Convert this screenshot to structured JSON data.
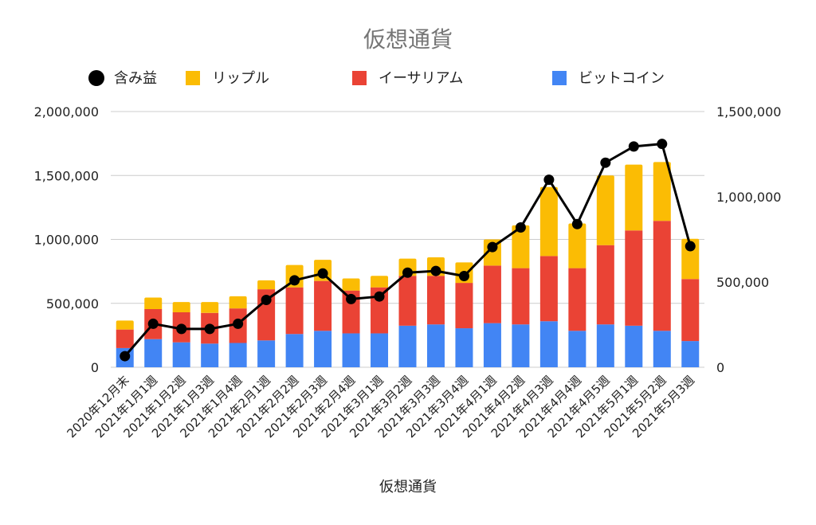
{
  "chart_data": {
    "type": "bar",
    "title": "仮想通貨",
    "xlabel": "仮想通貨",
    "ylabel": "",
    "legend_position": "top",
    "grid": true,
    "stacked": true,
    "categories": [
      "2020年12月末",
      "2021年1月1週",
      "2021年1月2週",
      "2021年1月3週",
      "2021年1月4週",
      "2021年2月1週",
      "2021年2月2週",
      "2021年2月3週",
      "2021年2月4週",
      "2021年3月1週",
      "2021年3月2週",
      "2021年3月3週",
      "2021年3月4週",
      "2021年4月1週",
      "2021年4月2週",
      "2021年4月3週",
      "2021年4月4週",
      "2021年4月5週",
      "2021年5月1週",
      "2021年5月2週",
      "2021年5月3週"
    ],
    "ylim": [
      0,
      2000000
    ],
    "yticks": [
      "0",
      "500,000",
      "1,000,000",
      "1,500,000",
      "2,000,000"
    ],
    "y2lim": [
      0,
      1500000
    ],
    "y2ticks": [
      "0",
      "500,000",
      "1,000,000",
      "1,500,000"
    ],
    "series": [
      {
        "name": "ビットコイン",
        "type": "bar",
        "axis": "left",
        "color": "#4285f4",
        "values": [
          150000,
          220000,
          195000,
          185000,
          190000,
          210000,
          260000,
          285000,
          265000,
          265000,
          325000,
          335000,
          305000,
          345000,
          335000,
          360000,
          285000,
          335000,
          325000,
          285000,
          205000
        ]
      },
      {
        "name": "イーサリアム",
        "type": "bar",
        "axis": "left",
        "color": "#ea4335",
        "values": [
          145000,
          235000,
          235000,
          240000,
          270000,
          400000,
          365000,
          390000,
          335000,
          360000,
          390000,
          380000,
          355000,
          450000,
          440000,
          510000,
          490000,
          620000,
          745000,
          860000,
          485000
        ]
      },
      {
        "name": "リップル",
        "type": "bar",
        "axis": "left",
        "color": "#fbbc04",
        "values": [
          70000,
          90000,
          80000,
          85000,
          95000,
          70000,
          175000,
          165000,
          95000,
          90000,
          135000,
          145000,
          160000,
          205000,
          335000,
          540000,
          350000,
          545000,
          515000,
          460000,
          315000
        ]
      },
      {
        "name": "含み益",
        "type": "line",
        "axis": "right",
        "color": "#000000",
        "values": [
          65000,
          255000,
          225000,
          225000,
          255000,
          395000,
          510000,
          550000,
          400000,
          415000,
          555000,
          565000,
          535000,
          705000,
          820000,
          1100000,
          840000,
          1200000,
          1295000,
          1310000,
          710000
        ]
      }
    ]
  },
  "colors": {
    "bitcoin": "#4285f4",
    "ethereum": "#ea4335",
    "ripple": "#fbbc04",
    "profit": "#000000",
    "title": "#757575"
  }
}
